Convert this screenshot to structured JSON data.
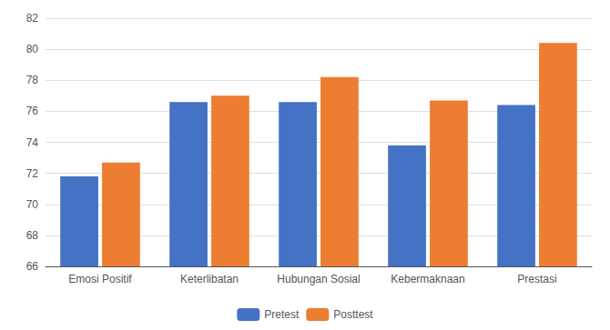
{
  "chart_data": {
    "type": "bar",
    "categories": [
      "Emosi Positif",
      "Keterlibatan",
      "Hubungan Sosial",
      "Kebermaknaan",
      "Prestasi"
    ],
    "series": [
      {
        "name": "Pretest",
        "color": "#4472C4",
        "values": [
          71.8,
          76.6,
          76.6,
          73.8,
          76.4
        ]
      },
      {
        "name": "Posttest",
        "color": "#ED7D31",
        "values": [
          72.7,
          77.0,
          78.2,
          76.7,
          80.4
        ]
      }
    ],
    "ylim": [
      66,
      82
    ],
    "yticks": [
      66,
      68,
      70,
      72,
      74,
      76,
      78,
      80,
      82
    ],
    "grid": true,
    "legend": "bottom"
  }
}
